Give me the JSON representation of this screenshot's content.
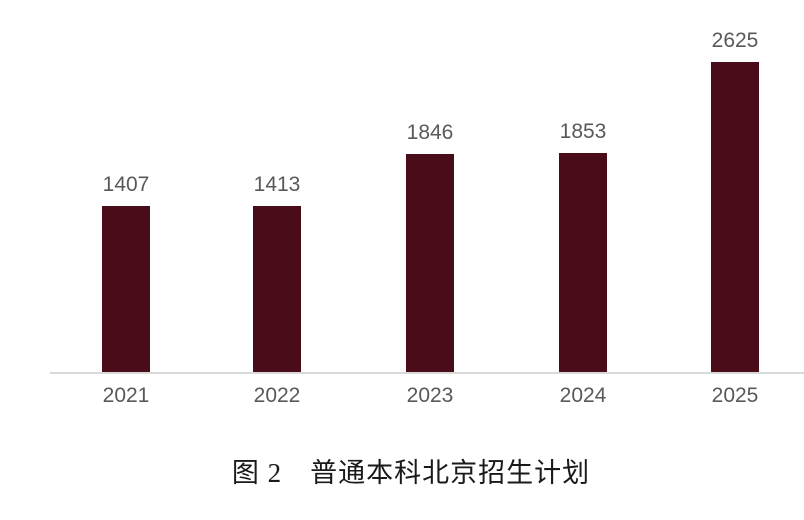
{
  "chart_data": {
    "type": "bar",
    "categories": [
      "2021",
      "2022",
      "2023",
      "2024",
      "2025"
    ],
    "values": [
      1407,
      1413,
      1846,
      1853,
      2625
    ],
    "data_labels": [
      "1407",
      "1413",
      "1846",
      "1853",
      "2625"
    ],
    "title": "图 2　普通本科北京招生计划",
    "xlabel": "",
    "ylabel": "",
    "ylim": [
      0,
      2800
    ],
    "grid": false,
    "legend": "none",
    "bar_color": "#4a0c18",
    "label_color": "#595959",
    "axis_line_color": "#d9d9d9",
    "caption_color": "#1a1a1a"
  }
}
